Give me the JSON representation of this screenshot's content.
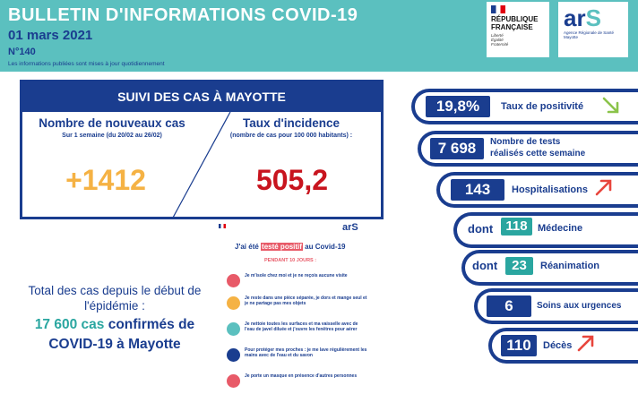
{
  "header": {
    "title": "BULLETIN D'INFORMATIONS COVID-19",
    "date": "01 mars 2021",
    "number": "N°140",
    "note": "Les informations publiées sont mises à jour quotidiennement",
    "logo_rf": {
      "name_l1": "RÉPUBLIQUE",
      "name_l2": "FRANÇAISE",
      "motto_l1": "Liberté",
      "motto_l2": "Égalité",
      "motto_l3": "Fraternité"
    },
    "logo_ars": {
      "mark_a": "ar",
      "mark_s": "S",
      "sub": "Agence Régionale de Santé Mayotte"
    }
  },
  "suivi": {
    "title": "SUIVI DES CAS À MAYOTTE",
    "new_cases": {
      "title": "Nombre de nouveaux cas",
      "sub": "Sur 1 semaine (du 20/02 au 26/02)",
      "value": "+1412"
    },
    "incidence": {
      "title": "Taux d'incidence",
      "sub": "(nombre de cas pour 100 000 habitants) :",
      "value": "505,2"
    }
  },
  "total": {
    "line1": "Total des cas depuis le début de",
    "line2": "l'épidémie :",
    "line3_a": "17 600 cas",
    "line3_b": " confirmés de",
    "line4": "COVID-19 à Mayotte"
  },
  "flyer": {
    "logo": "arS",
    "title_pre": "J'ai été ",
    "title_hl": "testé positif",
    "title_post": " au Covid-19",
    "subtitle": "PENDANT 10 JOURS :",
    "items": [
      "Je m'isole chez moi et je ne reçois aucune visite",
      "Je reste dans une pièce séparée, je dors et mange seul et je ne partage pas mes objets",
      "Je nettoie toutes les surfaces et ma vaisselle avec de l'eau de javel diluée et j'ouvre les fenêtres pour aérer",
      "Pour protéger mes proches : je me lave régulièrement les mains avec de l'eau et du savon",
      "Je porte un masque en présence d'autres personnes"
    ]
  },
  "stats": [
    {
      "value": "19,8%",
      "label": "Taux de positivité",
      "trend": "down"
    },
    {
      "value": "7 698",
      "label_l1": "Nombre de tests",
      "label_l2": "réalisés cette semaine"
    },
    {
      "value": "143",
      "label": "Hospitalisations",
      "trend": "up"
    },
    {
      "prefix": "dont",
      "value": "118",
      "label": "Médecine"
    },
    {
      "prefix": "dont",
      "value": "23",
      "label": "Réanimation"
    },
    {
      "value": "6",
      "label": "Soins aux urgences"
    },
    {
      "value": "110",
      "label": "Décès",
      "trend": "up"
    }
  ],
  "colors": {
    "navy": "#1a3d8f",
    "teal": "#5bc0bf",
    "teal_dark": "#2aa6a0",
    "orange": "#f5b244",
    "red": "#c8141e",
    "pink": "#e85a68",
    "arrow_down": "#8bc34a",
    "arrow_up": "#e8453c"
  }
}
